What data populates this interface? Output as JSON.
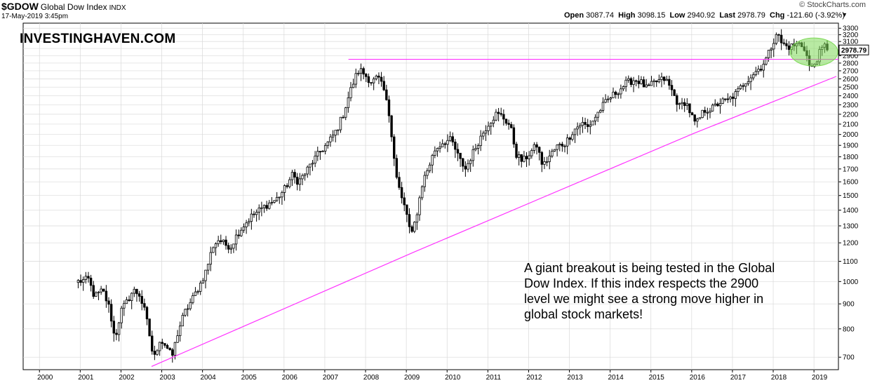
{
  "header": {
    "symbol": "$GDOW",
    "name": "Global Dow Index",
    "exchange": "INDX",
    "date": "17-May-2019 3:45pm",
    "brand": "© StockCharts.com",
    "open_label": "Open",
    "open": "3087.74",
    "high_label": "High",
    "high": "3098.15",
    "low_label": "Low",
    "low": "2940.92",
    "last_label": "Last",
    "last": "2978.79",
    "chg_label": "Chg",
    "chg": "-121.60 (-3.92%)"
  },
  "watermark": "INVESTINGHAVEN.COM",
  "annotation": "A giant breakout is being tested in the Global Dow Index. If this index respects the 2900 level we might see a strong move higher in global stock markets!",
  "colors": {
    "trendline": "#ff33ff",
    "highlight": "#7ed957",
    "up_candle": "#ffffff",
    "down_candle": "#000000",
    "grid": "#d9d9d9"
  },
  "chart_data": {
    "type": "candlestick",
    "scale": "log",
    "x_ticks": [
      "2000",
      "2001",
      "2002",
      "2003",
      "2004",
      "2005",
      "2006",
      "2007",
      "2008",
      "2009",
      "2010",
      "2011",
      "2012",
      "2013",
      "2014",
      "2015",
      "2016",
      "2017",
      "2018",
      "2019"
    ],
    "y_ticks": [
      700,
      800,
      900,
      1000,
      1100,
      1200,
      1300,
      1400,
      1500,
      1600,
      1700,
      1800,
      1900,
      2000,
      2100,
      2200,
      2300,
      2400,
      2500,
      2600,
      2700,
      2800,
      2900,
      3000,
      3100,
      3200,
      3300
    ],
    "ylim": [
      660,
      3380
    ],
    "xlim": [
      1999.6,
      2019.6
    ],
    "last_value_label": "2978.79",
    "path": [
      [
        2000.95,
        1000
      ],
      [
        2001.2,
        1010
      ],
      [
        2001.35,
        930
      ],
      [
        2001.55,
        960
      ],
      [
        2001.72,
        880
      ],
      [
        2001.85,
        760
      ],
      [
        2002.0,
        870
      ],
      [
        2002.15,
        910
      ],
      [
        2002.3,
        960
      ],
      [
        2002.45,
        940
      ],
      [
        2002.6,
        860
      ],
      [
        2002.72,
        760
      ],
      [
        2002.8,
        690
      ],
      [
        2002.95,
        760
      ],
      [
        2003.1,
        740
      ],
      [
        2003.25,
        700
      ],
      [
        2003.4,
        790
      ],
      [
        2003.55,
        860
      ],
      [
        2003.75,
        920
      ],
      [
        2003.95,
        990
      ],
      [
        2004.1,
        1060
      ],
      [
        2004.25,
        1180
      ],
      [
        2004.4,
        1220
      ],
      [
        2004.55,
        1190
      ],
      [
        2004.7,
        1180
      ],
      [
        2004.85,
        1250
      ],
      [
        2005.0,
        1300
      ],
      [
        2005.2,
        1360
      ],
      [
        2005.4,
        1400
      ],
      [
        2005.6,
        1440
      ],
      [
        2005.8,
        1470
      ],
      [
        2006.0,
        1540
      ],
      [
        2006.2,
        1650
      ],
      [
        2006.35,
        1600
      ],
      [
        2006.5,
        1660
      ],
      [
        2006.7,
        1760
      ],
      [
        2006.9,
        1850
      ],
      [
        2007.1,
        1930
      ],
      [
        2007.3,
        2050
      ],
      [
        2007.45,
        2200
      ],
      [
        2007.6,
        2420
      ],
      [
        2007.75,
        2620
      ],
      [
        2007.85,
        2720
      ],
      [
        2008.0,
        2640
      ],
      [
        2008.15,
        2560
      ],
      [
        2008.3,
        2620
      ],
      [
        2008.45,
        2460
      ],
      [
        2008.6,
        2150
      ],
      [
        2008.75,
        1650
      ],
      [
        2008.88,
        1480
      ],
      [
        2009.0,
        1390
      ],
      [
        2009.12,
        1230
      ],
      [
        2009.25,
        1370
      ],
      [
        2009.4,
        1600
      ],
      [
        2009.55,
        1720
      ],
      [
        2009.7,
        1860
      ],
      [
        2009.9,
        1930
      ],
      [
        2010.1,
        1950
      ],
      [
        2010.3,
        1780
      ],
      [
        2010.45,
        1700
      ],
      [
        2010.6,
        1810
      ],
      [
        2010.8,
        1960
      ],
      [
        2011.0,
        2100
      ],
      [
        2011.2,
        2200
      ],
      [
        2011.35,
        2180
      ],
      [
        2011.55,
        2080
      ],
      [
        2011.7,
        1820
      ],
      [
        2011.85,
        1760
      ],
      [
        2012.0,
        1820
      ],
      [
        2012.2,
        1900
      ],
      [
        2012.35,
        1720
      ],
      [
        2012.5,
        1800
      ],
      [
        2012.7,
        1890
      ],
      [
        2012.9,
        1920
      ],
      [
        2013.1,
        2040
      ],
      [
        2013.3,
        2110
      ],
      [
        2013.45,
        2070
      ],
      [
        2013.6,
        2150
      ],
      [
        2013.8,
        2280
      ],
      [
        2014.0,
        2380
      ],
      [
        2014.2,
        2460
      ],
      [
        2014.4,
        2550
      ],
      [
        2014.6,
        2590
      ],
      [
        2014.75,
        2560
      ],
      [
        2014.9,
        2480
      ],
      [
        2015.1,
        2560
      ],
      [
        2015.35,
        2600
      ],
      [
        2015.5,
        2470
      ],
      [
        2015.7,
        2280
      ],
      [
        2015.85,
        2340
      ],
      [
        2016.0,
        2180
      ],
      [
        2016.1,
        2090
      ],
      [
        2016.3,
        2240
      ],
      [
        2016.5,
        2260
      ],
      [
        2016.7,
        2330
      ],
      [
        2016.9,
        2350
      ],
      [
        2017.1,
        2430
      ],
      [
        2017.3,
        2560
      ],
      [
        2017.5,
        2660
      ],
      [
        2017.7,
        2750
      ],
      [
        2017.85,
        2880
      ],
      [
        2018.0,
        3100
      ],
      [
        2018.08,
        3240
      ],
      [
        2018.2,
        3080
      ],
      [
        2018.35,
        3020
      ],
      [
        2018.5,
        3040
      ],
      [
        2018.65,
        3070
      ],
      [
        2018.78,
        3000
      ],
      [
        2018.85,
        2830
      ],
      [
        2018.92,
        2700
      ],
      [
        2019.0,
        2780
      ],
      [
        2019.15,
        2950
      ],
      [
        2019.3,
        3060
      ],
      [
        2019.38,
        2978.79
      ]
    ],
    "lines": [
      {
        "kind": "horizontal",
        "y": 2850,
        "x_start": 2007.58,
        "x_end": 2019.6
      },
      {
        "kind": "trend",
        "points": [
          [
            2002.75,
            670
          ],
          [
            2009.2,
            1150
          ],
          [
            2016.05,
            2010
          ],
          [
            2019.55,
            2630
          ]
        ]
      }
    ],
    "highlight": {
      "x_center": 2019.0,
      "y_center": 2950
    }
  }
}
